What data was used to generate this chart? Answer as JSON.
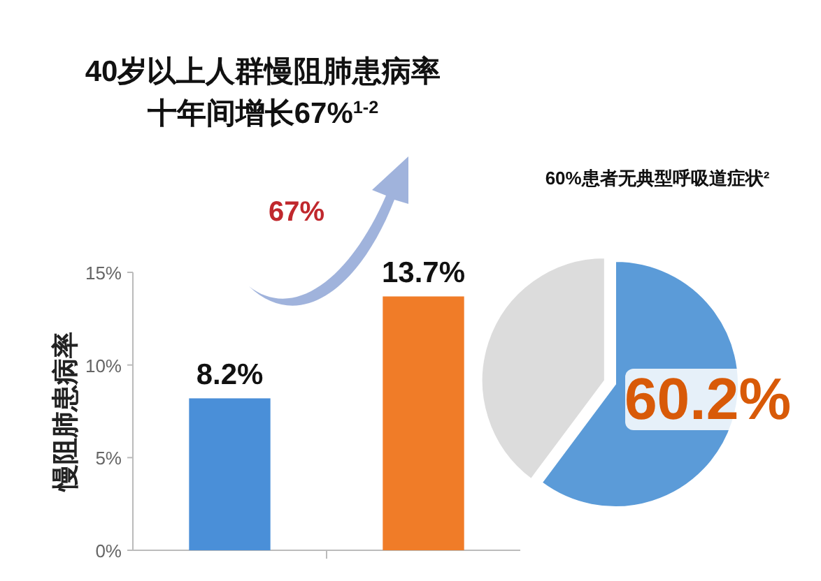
{
  "chart_data": [
    {
      "type": "bar",
      "title": "40岁以上人群慢阻肺患病率",
      "subtitle": "十年间增长67%$^{1-2}$",
      "ylabel": "慢阻肺患病率",
      "categories": [
        null,
        null
      ],
      "values": [
        8.2,
        13.7
      ],
      "colors": [
        "#4a8fd8",
        "#f07c28"
      ],
      "value_labels": [
        "8.2%",
        "13.7%"
      ],
      "ylim": [
        0,
        15
      ],
      "yticks": [
        {
          "value": 0,
          "label": "0%"
        },
        {
          "value": 5,
          "label": "5%"
        },
        {
          "value": 10,
          "label": "10%"
        },
        {
          "value": 15,
          "label": "15%"
        }
      ],
      "annotations": [
        "67%"
      ]
    },
    {
      "type": "pie",
      "title": "60%患者无典型呼吸道症状²",
      "categories": [
        null,
        null
      ],
      "values": [
        60.2,
        39.8
      ],
      "colors": [
        "#5b9bd8",
        "#dcdcdc"
      ],
      "value_labels": [
        "60.2%",
        null
      ]
    }
  ]
}
